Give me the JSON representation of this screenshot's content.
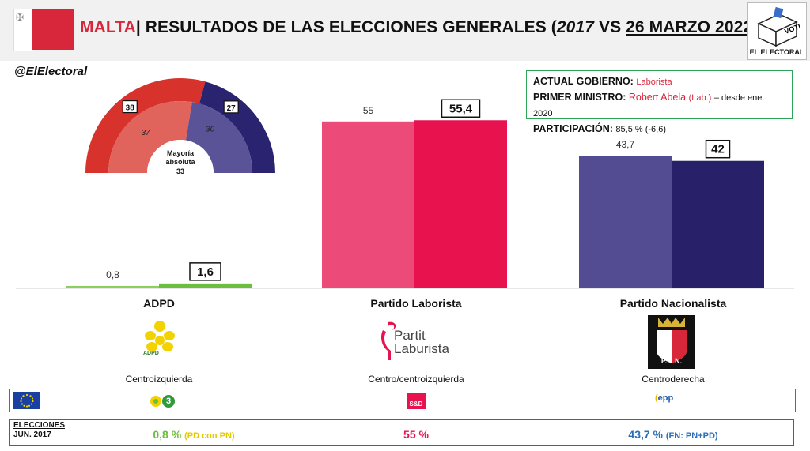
{
  "header": {
    "country": "MALTA",
    "separator": "|",
    "title_pre": "RESULTADOS DE LAS ELECCIONES GENERALES (",
    "year_prev": "2017",
    "title_vs": " VS ",
    "date_current": "26 MARZO 2022",
    "title_post": ")"
  },
  "logo": {
    "ballot_text": "VOTE",
    "brand": "EL ELECTORAL"
  },
  "handle": "@ElElectoral",
  "info_box": {
    "gov_label": "ACTUAL GOBIERNO:",
    "gov_value": "Laborista",
    "pm_label": "PRIMER MINISTRO:",
    "pm_name": "Robert Abela",
    "pm_party": "(Lab.)",
    "pm_since": "– desde ene. 2020",
    "turnout_label": "PARTICIPACIÓN:",
    "turnout_value": "85,5 % (-6,6)"
  },
  "parties": [
    {
      "name": "ADPD",
      "ideology": "Centroizquierda",
      "logo_text": "ADPD"
    },
    {
      "name": "Partido Laborista",
      "ideology": "Centro/centroizquierda",
      "logo_line1": "Partit",
      "logo_line2": "Laburista"
    },
    {
      "name": "Partido Nacionalista",
      "ideology": "Centroderecha",
      "logo_letters": "P.    N."
    }
  ],
  "groups": {
    "greens_badge": "3",
    "sd_badge": "S&D",
    "epp_badge": "epp"
  },
  "previous": {
    "label_line1": "ELECCIONES",
    "label_line2": "JUN. 2017",
    "adpd": "0,8 %",
    "adpd_note": "(PD con PN)",
    "lab": "55 %",
    "pn": "43,7 %",
    "pn_note": "(FN: PN+PD)"
  },
  "colors": {
    "adpd_prev": "#8ccf5a",
    "adpd_cur": "#6cbf3c",
    "lab_prev": "#ec4b7a",
    "lab_cur": "#e8124f",
    "pn_prev": "#544c92",
    "pn_cur": "#28216a",
    "seats_outer_lab": "#d7322c",
    "seats_outer_pn": "#2a2470",
    "seats_inner_lab": "#e0645c",
    "seats_inner_pn": "#5a5397"
  },
  "chart_data": [
    {
      "type": "bar",
      "categories": [
        "ADPD",
        "Partido Laborista",
        "Partido Nacionalista"
      ],
      "series": [
        {
          "name": "2017",
          "values": [
            0.8,
            55,
            43.7
          ],
          "labels": [
            "0,8",
            "55",
            "43,7"
          ]
        },
        {
          "name": "2022",
          "values": [
            1.6,
            55.4,
            42
          ],
          "labels": [
            "1,6",
            "55,4",
            "42"
          ]
        }
      ],
      "ylim": [
        0,
        60
      ]
    },
    {
      "type": "pie",
      "shape": "semicircle",
      "rings": [
        {
          "name": "2022",
          "slices": [
            {
              "party": "Partido Laborista",
              "seats": 38
            },
            {
              "party": "Partido Nacionalista",
              "seats": 27
            }
          ]
        },
        {
          "name": "2017",
          "slices": [
            {
              "party": "Partido Laborista",
              "seats": 37
            },
            {
              "party": "Partido Nacionalista",
              "seats": 30
            }
          ]
        }
      ],
      "majority_line1": "Mayoría",
      "majority_line2": "absoluta",
      "majority_value": "33"
    }
  ]
}
